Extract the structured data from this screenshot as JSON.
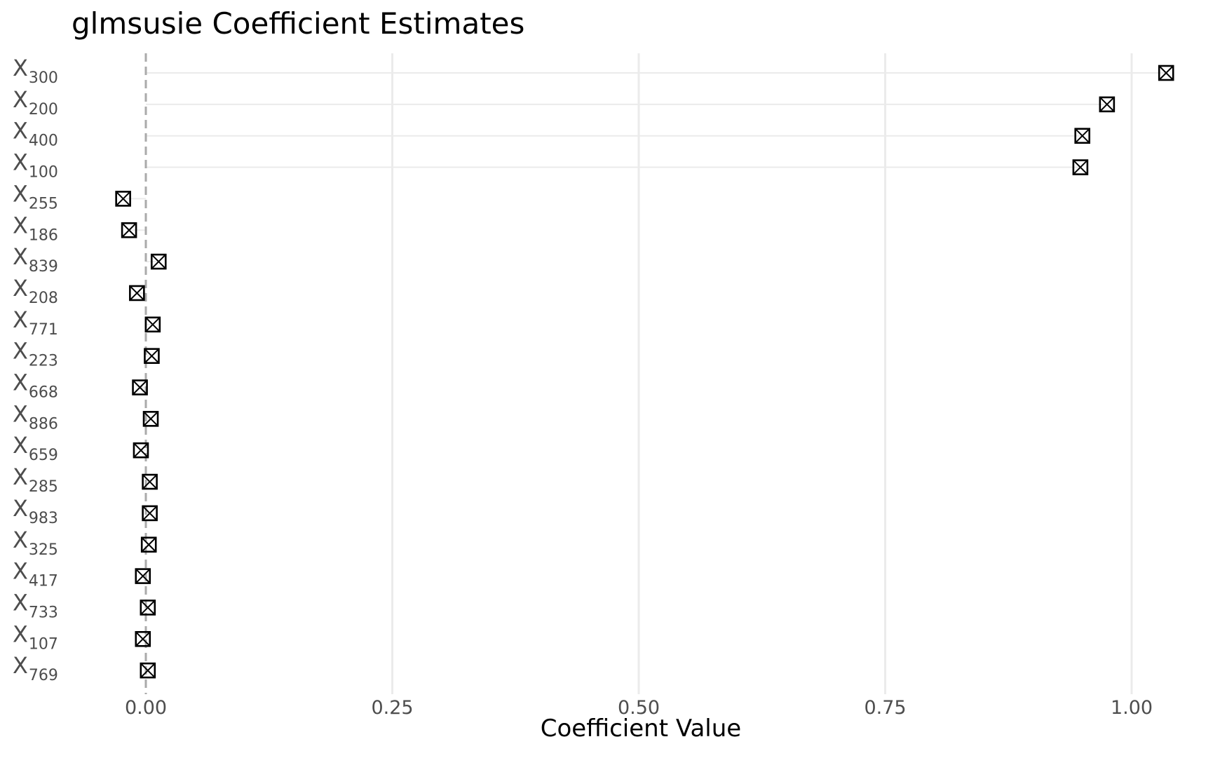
{
  "chart_data": {
    "type": "scatter",
    "title": "glmsusie Coefficient Estimates",
    "xlabel": "Coefficient Value",
    "ylabel": "",
    "xlim": [
      -0.068,
      1.058
    ],
    "x_ticks": [
      0.0,
      0.25,
      0.5,
      0.75,
      1.0
    ],
    "x_tick_labels": [
      "0.00",
      "0.25",
      "0.50",
      "0.75",
      "1.00"
    ],
    "reference_line": {
      "x": 0,
      "style": "dashed",
      "color": "#aaaaaa"
    },
    "grid": "vertical major",
    "legend": "none",
    "marker": "square-cross",
    "points": [
      {
        "label": "X",
        "sub": "300",
        "value": 1.035
      },
      {
        "label": "X",
        "sub": "200",
        "value": 0.975
      },
      {
        "label": "X",
        "sub": "400",
        "value": 0.95
      },
      {
        "label": "X",
        "sub": "100",
        "value": 0.948
      },
      {
        "label": "X",
        "sub": "255",
        "value": -0.023
      },
      {
        "label": "X",
        "sub": "186",
        "value": -0.017
      },
      {
        "label": "X",
        "sub": "839",
        "value": 0.013
      },
      {
        "label": "X",
        "sub": "208",
        "value": -0.009
      },
      {
        "label": "X",
        "sub": "771",
        "value": 0.007
      },
      {
        "label": "X",
        "sub": "223",
        "value": 0.006
      },
      {
        "label": "X",
        "sub": "668",
        "value": -0.006
      },
      {
        "label": "X",
        "sub": "886",
        "value": 0.005
      },
      {
        "label": "X",
        "sub": "659",
        "value": -0.005
      },
      {
        "label": "X",
        "sub": "285",
        "value": 0.004
      },
      {
        "label": "X",
        "sub": "983",
        "value": 0.004
      },
      {
        "label": "X",
        "sub": "325",
        "value": 0.003
      },
      {
        "label": "X",
        "sub": "417",
        "value": -0.003
      },
      {
        "label": "X",
        "sub": "733",
        "value": 0.002
      },
      {
        "label": "X",
        "sub": "107",
        "value": -0.003
      },
      {
        "label": "X",
        "sub": "769",
        "value": 0.002
      }
    ]
  }
}
